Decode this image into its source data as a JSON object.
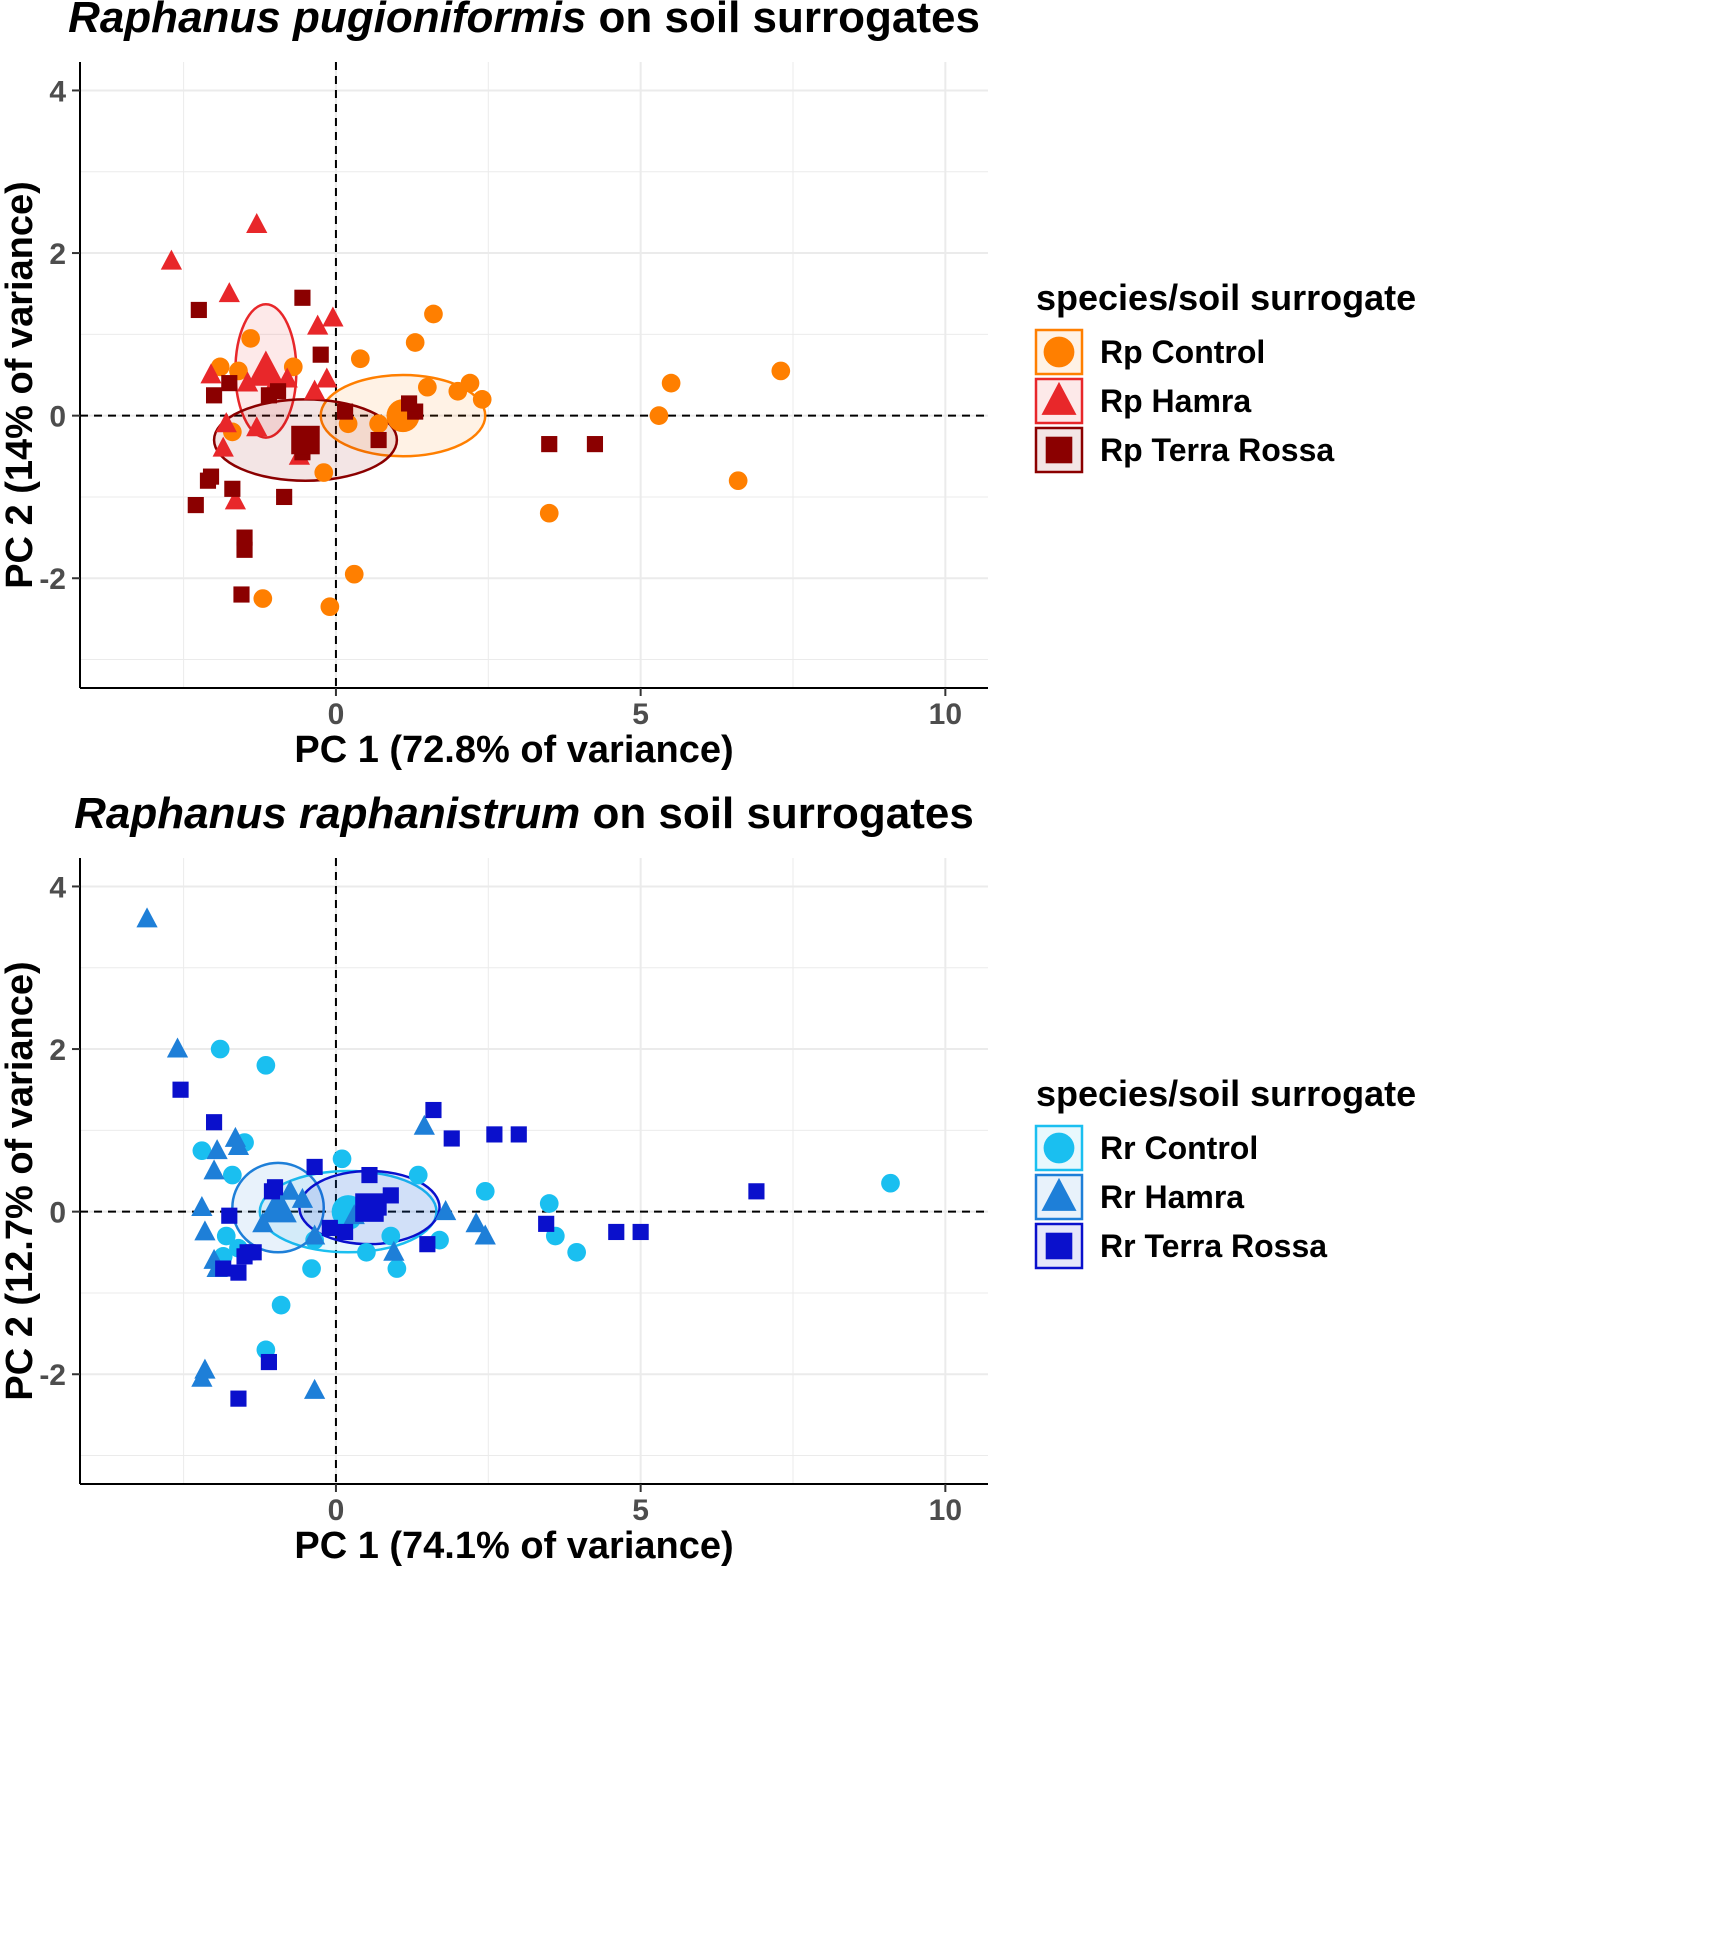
{
  "chart_data": [
    {
      "type": "scatter",
      "title_italic": "Raphanus pugioniformis",
      "title_rest": " on soil surrogates",
      "xlabel": "PC 1 (72.8% of variance)",
      "ylabel": "PC 2 (14% of variance)",
      "xlim": [
        -4.2,
        10.7
      ],
      "ylim": [
        -3.35,
        4.35
      ],
      "xticks": [
        0,
        5,
        10
      ],
      "yticks": [
        -2,
        0,
        2,
        4
      ],
      "legend_title": "species/soil surrogate",
      "series": [
        {
          "name": "Rp Control",
          "shape": "circle",
          "color": "#FF7F00",
          "centroid": [
            1.1,
            0.0
          ],
          "ellipse": {
            "rx": 1.35,
            "ry": 0.5,
            "angle": 0
          },
          "points": [
            [
              0.4,
              0.7
            ],
            [
              0.2,
              -0.1
            ],
            [
              1.3,
              0.9
            ],
            [
              1.6,
              1.25
            ],
            [
              1.5,
              0.35
            ],
            [
              2.2,
              0.4
            ],
            [
              2.0,
              0.3
            ],
            [
              2.4,
              0.2
            ],
            [
              0.7,
              -0.1
            ],
            [
              5.3,
              0.0
            ],
            [
              5.5,
              0.4
            ],
            [
              7.3,
              0.55
            ],
            [
              6.6,
              -0.8
            ],
            [
              3.5,
              -1.2
            ],
            [
              0.3,
              -1.95
            ],
            [
              -0.1,
              -2.35
            ],
            [
              -1.2,
              -2.25
            ],
            [
              -0.2,
              -0.7
            ],
            [
              -0.7,
              0.6
            ],
            [
              -1.4,
              0.95
            ],
            [
              -1.6,
              0.55
            ],
            [
              -1.9,
              0.6
            ],
            [
              -1.7,
              -0.2
            ]
          ]
        },
        {
          "name": "Rp Hamra",
          "shape": "triangle",
          "color": "#E8272A",
          "centroid": [
            -1.15,
            0.55
          ],
          "ellipse": {
            "rx": 0.5,
            "ry": 0.82,
            "angle": 0
          },
          "points": [
            [
              -2.7,
              1.9
            ],
            [
              -1.3,
              2.35
            ],
            [
              -1.75,
              1.5
            ],
            [
              -0.3,
              1.1
            ],
            [
              -0.05,
              1.2
            ],
            [
              -2.05,
              0.5
            ],
            [
              -1.0,
              0.4
            ],
            [
              -0.15,
              0.45
            ],
            [
              -1.8,
              -0.1
            ],
            [
              -1.3,
              -0.15
            ],
            [
              -0.6,
              -0.5
            ],
            [
              -1.85,
              -0.4
            ],
            [
              -1.65,
              -1.05
            ],
            [
              -1.45,
              0.4
            ],
            [
              -0.8,
              0.45
            ],
            [
              -0.35,
              0.3
            ]
          ]
        },
        {
          "name": "Rp Terra Rossa",
          "shape": "square",
          "color": "#8B0000",
          "centroid": [
            -0.5,
            -0.3
          ],
          "ellipse": {
            "rx": 1.5,
            "ry": 0.5,
            "angle": 0
          },
          "points": [
            [
              -0.55,
              1.45
            ],
            [
              -2.25,
              1.3
            ],
            [
              -0.25,
              0.75
            ],
            [
              -1.75,
              0.4
            ],
            [
              -2.0,
              0.25
            ],
            [
              -1.1,
              0.25
            ],
            [
              -0.95,
              0.3
            ],
            [
              0.15,
              0.05
            ],
            [
              1.3,
              0.05
            ],
            [
              1.2,
              0.15
            ],
            [
              0.7,
              -0.3
            ],
            [
              -2.1,
              -0.8
            ],
            [
              -2.05,
              -0.75
            ],
            [
              -1.7,
              -0.9
            ],
            [
              -2.3,
              -1.1
            ],
            [
              -0.85,
              -1.0
            ],
            [
              -1.5,
              -1.5
            ],
            [
              -1.5,
              -1.65
            ],
            [
              -1.55,
              -2.2
            ],
            [
              3.5,
              -0.35
            ],
            [
              4.25,
              -0.35
            ],
            [
              -0.55,
              -0.45
            ]
          ]
        }
      ]
    },
    {
      "type": "scatter",
      "title_italic": "Raphanus raphanistrum",
      "title_rest": " on soil surrogates",
      "xlabel": "PC 1 (74.1% of variance)",
      "ylabel": "PC 2 (12.7% of variance)",
      "xlim": [
        -4.2,
        10.7
      ],
      "ylim": [
        -3.35,
        4.35
      ],
      "xticks": [
        0,
        5,
        10
      ],
      "yticks": [
        -2,
        0,
        2,
        4
      ],
      "legend_title": "species/soil surrogate",
      "series": [
        {
          "name": "Rr Control",
          "shape": "circle",
          "color": "#1ABFF0",
          "centroid": [
            0.2,
            0.0
          ],
          "ellipse": {
            "rx": 1.45,
            "ry": 0.5,
            "angle": 0
          },
          "points": [
            [
              -1.9,
              2.0
            ],
            [
              -1.15,
              1.8
            ],
            [
              -2.2,
              0.75
            ],
            [
              -1.5,
              0.85
            ],
            [
              -1.7,
              0.45
            ],
            [
              0.1,
              0.65
            ],
            [
              1.35,
              0.45
            ],
            [
              2.45,
              0.25
            ],
            [
              3.5,
              0.1
            ],
            [
              3.6,
              -0.3
            ],
            [
              3.95,
              -0.5
            ],
            [
              0.5,
              -0.5
            ],
            [
              1.0,
              -0.7
            ],
            [
              -0.4,
              -0.7
            ],
            [
              -0.9,
              -1.15
            ],
            [
              -1.15,
              -1.7
            ],
            [
              -1.85,
              -0.55
            ],
            [
              -1.6,
              -0.45
            ],
            [
              -1.8,
              -0.3
            ],
            [
              -0.35,
              -0.35
            ],
            [
              0.9,
              -0.3
            ],
            [
              1.7,
              -0.35
            ],
            [
              9.1,
              0.35
            ],
            [
              0.25,
              -0.1
            ]
          ]
        },
        {
          "name": "Rr Hamra",
          "shape": "triangle",
          "color": "#1E7FD8",
          "centroid": [
            -0.95,
            0.05
          ],
          "ellipse": {
            "rx": 0.75,
            "ry": 0.55,
            "angle": 0
          },
          "points": [
            [
              -3.1,
              3.6
            ],
            [
              -2.6,
              2.0
            ],
            [
              -1.65,
              0.9
            ],
            [
              -1.6,
              0.8
            ],
            [
              -1.95,
              0.75
            ],
            [
              -2.0,
              0.5
            ],
            [
              -2.2,
              0.05
            ],
            [
              -2.15,
              -0.25
            ],
            [
              -2.0,
              -0.6
            ],
            [
              -1.95,
              -0.7
            ],
            [
              -1.2,
              -0.15
            ],
            [
              -0.75,
              0.25
            ],
            [
              -0.55,
              0.15
            ],
            [
              -0.35,
              -0.3
            ],
            [
              1.45,
              1.05
            ],
            [
              1.8,
              0.0
            ],
            [
              2.3,
              -0.15
            ],
            [
              2.45,
              -0.3
            ],
            [
              0.95,
              -0.5
            ],
            [
              -0.35,
              -2.2
            ],
            [
              -2.15,
              -1.95
            ],
            [
              -2.2,
              -2.05
            ],
            [
              0.3,
              -0.05
            ]
          ]
        },
        {
          "name": "Rr Terra Rossa",
          "shape": "square",
          "color": "#0A10CC",
          "centroid": [
            0.55,
            0.05
          ],
          "ellipse": {
            "rx": 1.15,
            "ry": 0.45,
            "angle": 0
          },
          "points": [
            [
              -2.55,
              1.5
            ],
            [
              -2.0,
              1.1
            ],
            [
              1.6,
              1.25
            ],
            [
              1.9,
              0.9
            ],
            [
              2.6,
              0.95
            ],
            [
              3.0,
              0.95
            ],
            [
              -0.35,
              0.55
            ],
            [
              0.55,
              0.45
            ],
            [
              -1.0,
              0.3
            ],
            [
              -1.05,
              0.25
            ],
            [
              0.9,
              0.2
            ],
            [
              0.7,
              0.05
            ],
            [
              -1.75,
              -0.05
            ],
            [
              -0.1,
              -0.2
            ],
            [
              0.15,
              -0.25
            ],
            [
              1.5,
              -0.4
            ],
            [
              -1.45,
              -0.5
            ],
            [
              -1.35,
              -0.5
            ],
            [
              -1.5,
              -0.55
            ],
            [
              -1.85,
              -0.7
            ],
            [
              -1.6,
              -0.75
            ],
            [
              3.45,
              -0.15
            ],
            [
              4.6,
              -0.25
            ],
            [
              5.0,
              -0.25
            ],
            [
              6.9,
              0.25
            ],
            [
              -1.1,
              -1.85
            ],
            [
              -1.6,
              -2.3
            ]
          ]
        }
      ]
    }
  ]
}
